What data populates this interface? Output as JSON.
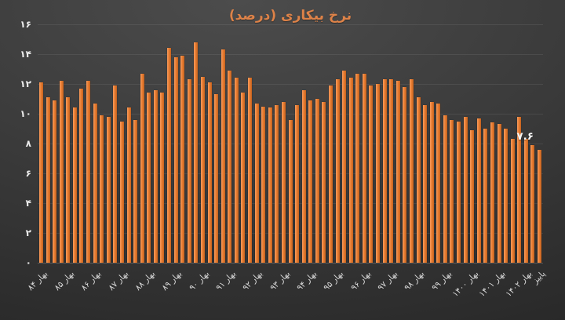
{
  "chart_data": {
    "type": "bar",
    "title": "نرخ بیکاری (درصد)",
    "xlabel": "",
    "ylabel": "",
    "ylim": [
      0,
      16
    ],
    "grid": true,
    "legend": "none",
    "orientation": "vertical",
    "bar_color": "#e87e33",
    "bar_highlight_color": "#f89c5f",
    "bar_shadow_color": "#c4611e",
    "title_color": "#dd8248",
    "axis_label_color": "#ececec",
    "background_colors": [
      "#4c4c4c",
      "#242424"
    ],
    "y_tick_values": [
      0,
      2,
      4,
      6,
      8,
      10,
      12,
      14,
      16
    ],
    "y_tick_labels": [
      "۰",
      "۲",
      "۴",
      "۶",
      "۸",
      "۱۰",
      "۱۲",
      "۱۴",
      "۱۶"
    ],
    "x_tick_labels": [
      {
        "index": 0,
        "label": "بهار ۸۴"
      },
      {
        "index": 4,
        "label": "بهار ۸۵"
      },
      {
        "index": 8,
        "label": "بهار ۸۶"
      },
      {
        "index": 12,
        "label": "بهار ۸۷"
      },
      {
        "index": 16,
        "label": "بهار ۸۸"
      },
      {
        "index": 20,
        "label": "بهار ۸۹"
      },
      {
        "index": 24,
        "label": "بهار ۹۰"
      },
      {
        "index": 28,
        "label": "بهار ۹۱"
      },
      {
        "index": 32,
        "label": "بهار ۹۲"
      },
      {
        "index": 36,
        "label": "بهار ۹۳"
      },
      {
        "index": 40,
        "label": "بهار ۹۴"
      },
      {
        "index": 44,
        "label": "بهار ۹۵"
      },
      {
        "index": 48,
        "label": "بهار ۹۶"
      },
      {
        "index": 52,
        "label": "بهار ۹۷"
      },
      {
        "index": 56,
        "label": "بهار ۹۸"
      },
      {
        "index": 60,
        "label": "بهار ۹۹"
      },
      {
        "index": 64,
        "label": "بهار ۱۴۰۰"
      },
      {
        "index": 68,
        "label": "بهار ۱۴۰۱"
      },
      {
        "index": 72,
        "label": "بهار ۱۴۰۲"
      },
      {
        "index": 74,
        "label": "پاییز"
      }
    ],
    "values": [
      12.1,
      11.1,
      10.9,
      12.2,
      11.1,
      10.4,
      11.7,
      12.2,
      10.7,
      9.9,
      9.8,
      11.9,
      9.5,
      10.4,
      9.6,
      12.7,
      11.4,
      11.6,
      11.4,
      14.4,
      13.8,
      13.9,
      12.3,
      14.8,
      12.5,
      12.1,
      11.3,
      14.3,
      12.9,
      12.4,
      11.4,
      12.4,
      10.7,
      10.5,
      10.4,
      10.6,
      10.8,
      9.6,
      10.6,
      11.6,
      10.9,
      11.0,
      10.8,
      11.9,
      12.3,
      12.9,
      12.4,
      12.7,
      12.7,
      11.9,
      12.0,
      12.3,
      12.3,
      12.2,
      11.8,
      12.3,
      11.1,
      10.6,
      10.8,
      10.7,
      9.9,
      9.6,
      9.5,
      9.8,
      8.9,
      9.7,
      9.0,
      9.4,
      9.3,
      9.0,
      8.3,
      9.8,
      8.3,
      7.9,
      7.6
    ],
    "annotation": {
      "text": "۷.۶",
      "value": 7.6,
      "target": "last-bar"
    }
  }
}
